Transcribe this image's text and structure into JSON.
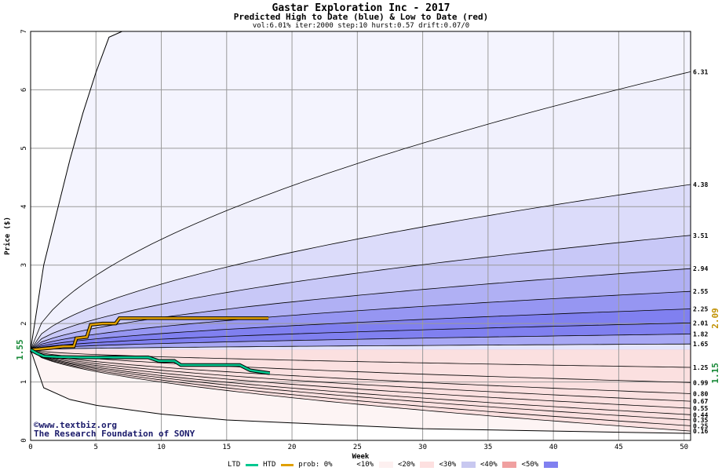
{
  "title": "Gastar Exploration Inc - 2017",
  "subtitle": "Predicted High to Date (blue) &  Low to Date (red)",
  "params": "vol:6.01% iter:2000 step:10 hurst:0.57 drift:0.07/0",
  "watermark": {
    "line1": "www.textbiz.org",
    "line2": "The Research Foundation of SONY"
  },
  "legend": {
    "ltd": "LTD",
    "htd": "HTD",
    "ltd_color": "#00c890",
    "htd_color": "#e0a000",
    "prob_label": "prob:",
    "items": [
      {
        "label": "0%",
        "color": "#ffffff"
      },
      {
        "label": "<10%",
        "color": "#fdf0f0"
      },
      {
        "label": "<20%",
        "color": "#fde0e0"
      },
      {
        "label": "<30%",
        "color": "#c8c8f0"
      },
      {
        "label": "<40%",
        "color": "#f0a0a0"
      },
      {
        "label": "<50%",
        "color": "#8080f0"
      }
    ]
  },
  "chart_data": {
    "type": "area",
    "title": "Gastar Exploration Inc - 2017",
    "xlabel": "Week",
    "ylabel": "Price ($)",
    "xlim": [
      0,
      50.5
    ],
    "ylim": [
      0,
      7
    ],
    "x_ticks": [
      0,
      5,
      10,
      15,
      20,
      25,
      30,
      35,
      40,
      45,
      50
    ],
    "y_ticks": [
      0,
      1,
      2,
      3,
      4,
      5,
      6,
      7
    ],
    "grid": true,
    "start_price": 1.55,
    "start_label": "1.55",
    "current_high": 2.09,
    "current_high_label": "2.09",
    "current_low": 1.15,
    "current_low_label": "1.15",
    "outer_upper_curve": {
      "x": [
        0,
        1,
        2,
        3,
        4,
        5,
        6,
        7
      ],
      "y": [
        1.55,
        3.0,
        3.9,
        4.8,
        5.6,
        6.3,
        6.9,
        7.0
      ]
    },
    "outer_lower_curve": {
      "x": [
        0,
        1,
        3,
        5,
        10,
        15,
        20,
        25,
        30,
        35,
        40,
        45,
        50.5
      ],
      "y": [
        1.55,
        0.9,
        0.7,
        0.6,
        0.45,
        0.35,
        0.3,
        0.25,
        0.2,
        0.18,
        0.16,
        0.14,
        0.12
      ]
    },
    "upper_bands": [
      {
        "end": 6.31,
        "label": "6.31",
        "color": "#f1f1fd"
      },
      {
        "end": 4.38,
        "label": "4.38",
        "color": "#dcdcfa"
      },
      {
        "end": 3.51,
        "label": "3.51",
        "color": "#c8c8f7"
      },
      {
        "end": 2.94,
        "label": "2.94",
        "color": "#b0b0f4"
      },
      {
        "end": 2.55,
        "label": "2.55",
        "color": "#9696f2"
      },
      {
        "end": 2.25,
        "label": "2.25",
        "color": "#8080f0"
      },
      {
        "end": 2.01,
        "label": "2.01",
        "color": "#8080f0"
      },
      {
        "end": 1.82,
        "label": "1.82",
        "color": "#a8a8f4"
      },
      {
        "end": 1.65,
        "label": "1.65",
        "color": "#e4e4fb"
      }
    ],
    "lower_bands": [
      {
        "end": 1.25,
        "label": "1.25",
        "color": "#fdf0f0"
      },
      {
        "end": 0.99,
        "label": "0.99",
        "color": "#fde0e0"
      },
      {
        "end": 0.8,
        "label": "0.80",
        "color": "#fcd0d0"
      },
      {
        "end": 0.67,
        "label": "0.67",
        "color": "#f8b8b8"
      },
      {
        "end": 0.55,
        "label": "0.55",
        "color": "#f4a0a0"
      },
      {
        "end": 0.44,
        "label": "0.44",
        "color": "#f08a8a"
      },
      {
        "end": 0.35,
        "label": "0.35",
        "color": "#f27c7c"
      },
      {
        "end": 0.25,
        "label": "0.25",
        "color": "#f6b0b0"
      },
      {
        "end": 0.16,
        "label": "0.16",
        "color": "#fbe0e0"
      }
    ],
    "series": [
      {
        "name": "HTD",
        "color": "#e0a000",
        "x": [
          0,
          0.5,
          1.5,
          2.5,
          3.3,
          3.5,
          4.3,
          4.6,
          5.5,
          6.5,
          6.8,
          7.5,
          9,
          12,
          15,
          18.2
        ],
        "y": [
          1.55,
          1.56,
          1.58,
          1.61,
          1.61,
          1.75,
          1.77,
          1.98,
          2.0,
          2.0,
          2.09,
          2.09,
          2.09,
          2.09,
          2.09,
          2.09
        ]
      },
      {
        "name": "LTD",
        "color": "#00c890",
        "x": [
          0,
          0.5,
          1,
          2,
          4,
          6,
          9,
          9.8,
          11,
          11.5,
          13,
          16,
          16.8,
          18.3
        ],
        "y": [
          1.55,
          1.49,
          1.44,
          1.43,
          1.42,
          1.42,
          1.42,
          1.36,
          1.36,
          1.29,
          1.29,
          1.29,
          1.2,
          1.15
        ]
      }
    ]
  }
}
